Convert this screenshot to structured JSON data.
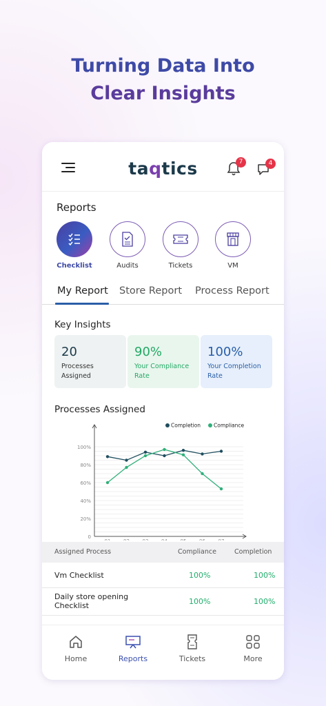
{
  "headline": {
    "line1": "Turning Data Into",
    "line2": "Clear Insights"
  },
  "app": {
    "logo_prefix": "ta",
    "logo_q": "q",
    "logo_suffix": "tics",
    "notifications_count": "7",
    "messages_count": "4"
  },
  "reports": {
    "title": "Reports",
    "categories": [
      {
        "label": "Checklist",
        "icon": "checklist-icon",
        "active": true
      },
      {
        "label": "Audits",
        "icon": "audit-document-icon"
      },
      {
        "label": "Tickets",
        "icon": "ticket-icon"
      },
      {
        "label": "VM",
        "icon": "storefront-icon"
      }
    ]
  },
  "tabs": [
    "My Report",
    "Store Report",
    "Process Report"
  ],
  "key_insights": {
    "title": "Key Insights",
    "cards": [
      {
        "value": "20",
        "label_l1": "Processes",
        "label_l2": "Assigned",
        "bg": "#eef2f2",
        "color": "#1c3a4a"
      },
      {
        "value": "90%",
        "label_l1": "Your Compliance",
        "label_l2": "Rate",
        "bg": "#e9f6ee",
        "color": "#23a864"
      },
      {
        "value": "100%",
        "label_l1": "Your Completion",
        "label_l2": "Rate",
        "bg": "#e6effb",
        "color": "#2a5ea8"
      }
    ]
  },
  "processes_assigned": {
    "title": "Processes Assigned"
  },
  "chart_data": {
    "type": "line",
    "x": [
      "01",
      "02",
      "03",
      "04",
      "05",
      "06",
      "07"
    ],
    "y_ticks": [
      "0",
      "20%",
      "40%",
      "60%",
      "80%",
      "100%"
    ],
    "ylim": [
      0,
      100
    ],
    "grid": true,
    "legend": "top-right",
    "series": [
      {
        "name": "Completion",
        "color": "#1f4e5f",
        "values": [
          89,
          85,
          94,
          90,
          96,
          92,
          95
        ]
      },
      {
        "name": "Compliance",
        "color": "#2fb07a",
        "values": [
          60,
          77,
          90,
          97,
          91,
          70,
          53
        ]
      }
    ]
  },
  "table": {
    "headers": [
      "Assigned Process",
      "Compliance",
      "Completion"
    ],
    "rows": [
      {
        "name_l1": "Vm Checklist",
        "name_l2": "",
        "compliance": "100%",
        "completion": "100%"
      },
      {
        "name_l1": "Daily store opening",
        "name_l2": "Checklist",
        "compliance": "100%",
        "completion": "100%"
      }
    ]
  },
  "bottom_nav": [
    {
      "label": "Home",
      "icon": "home-icon"
    },
    {
      "label": "Reports",
      "icon": "reports-presentation-icon",
      "active": true
    },
    {
      "label": "Tickets",
      "icon": "ticket-icon"
    },
    {
      "label": "More",
      "icon": "grid-more-icon"
    }
  ]
}
